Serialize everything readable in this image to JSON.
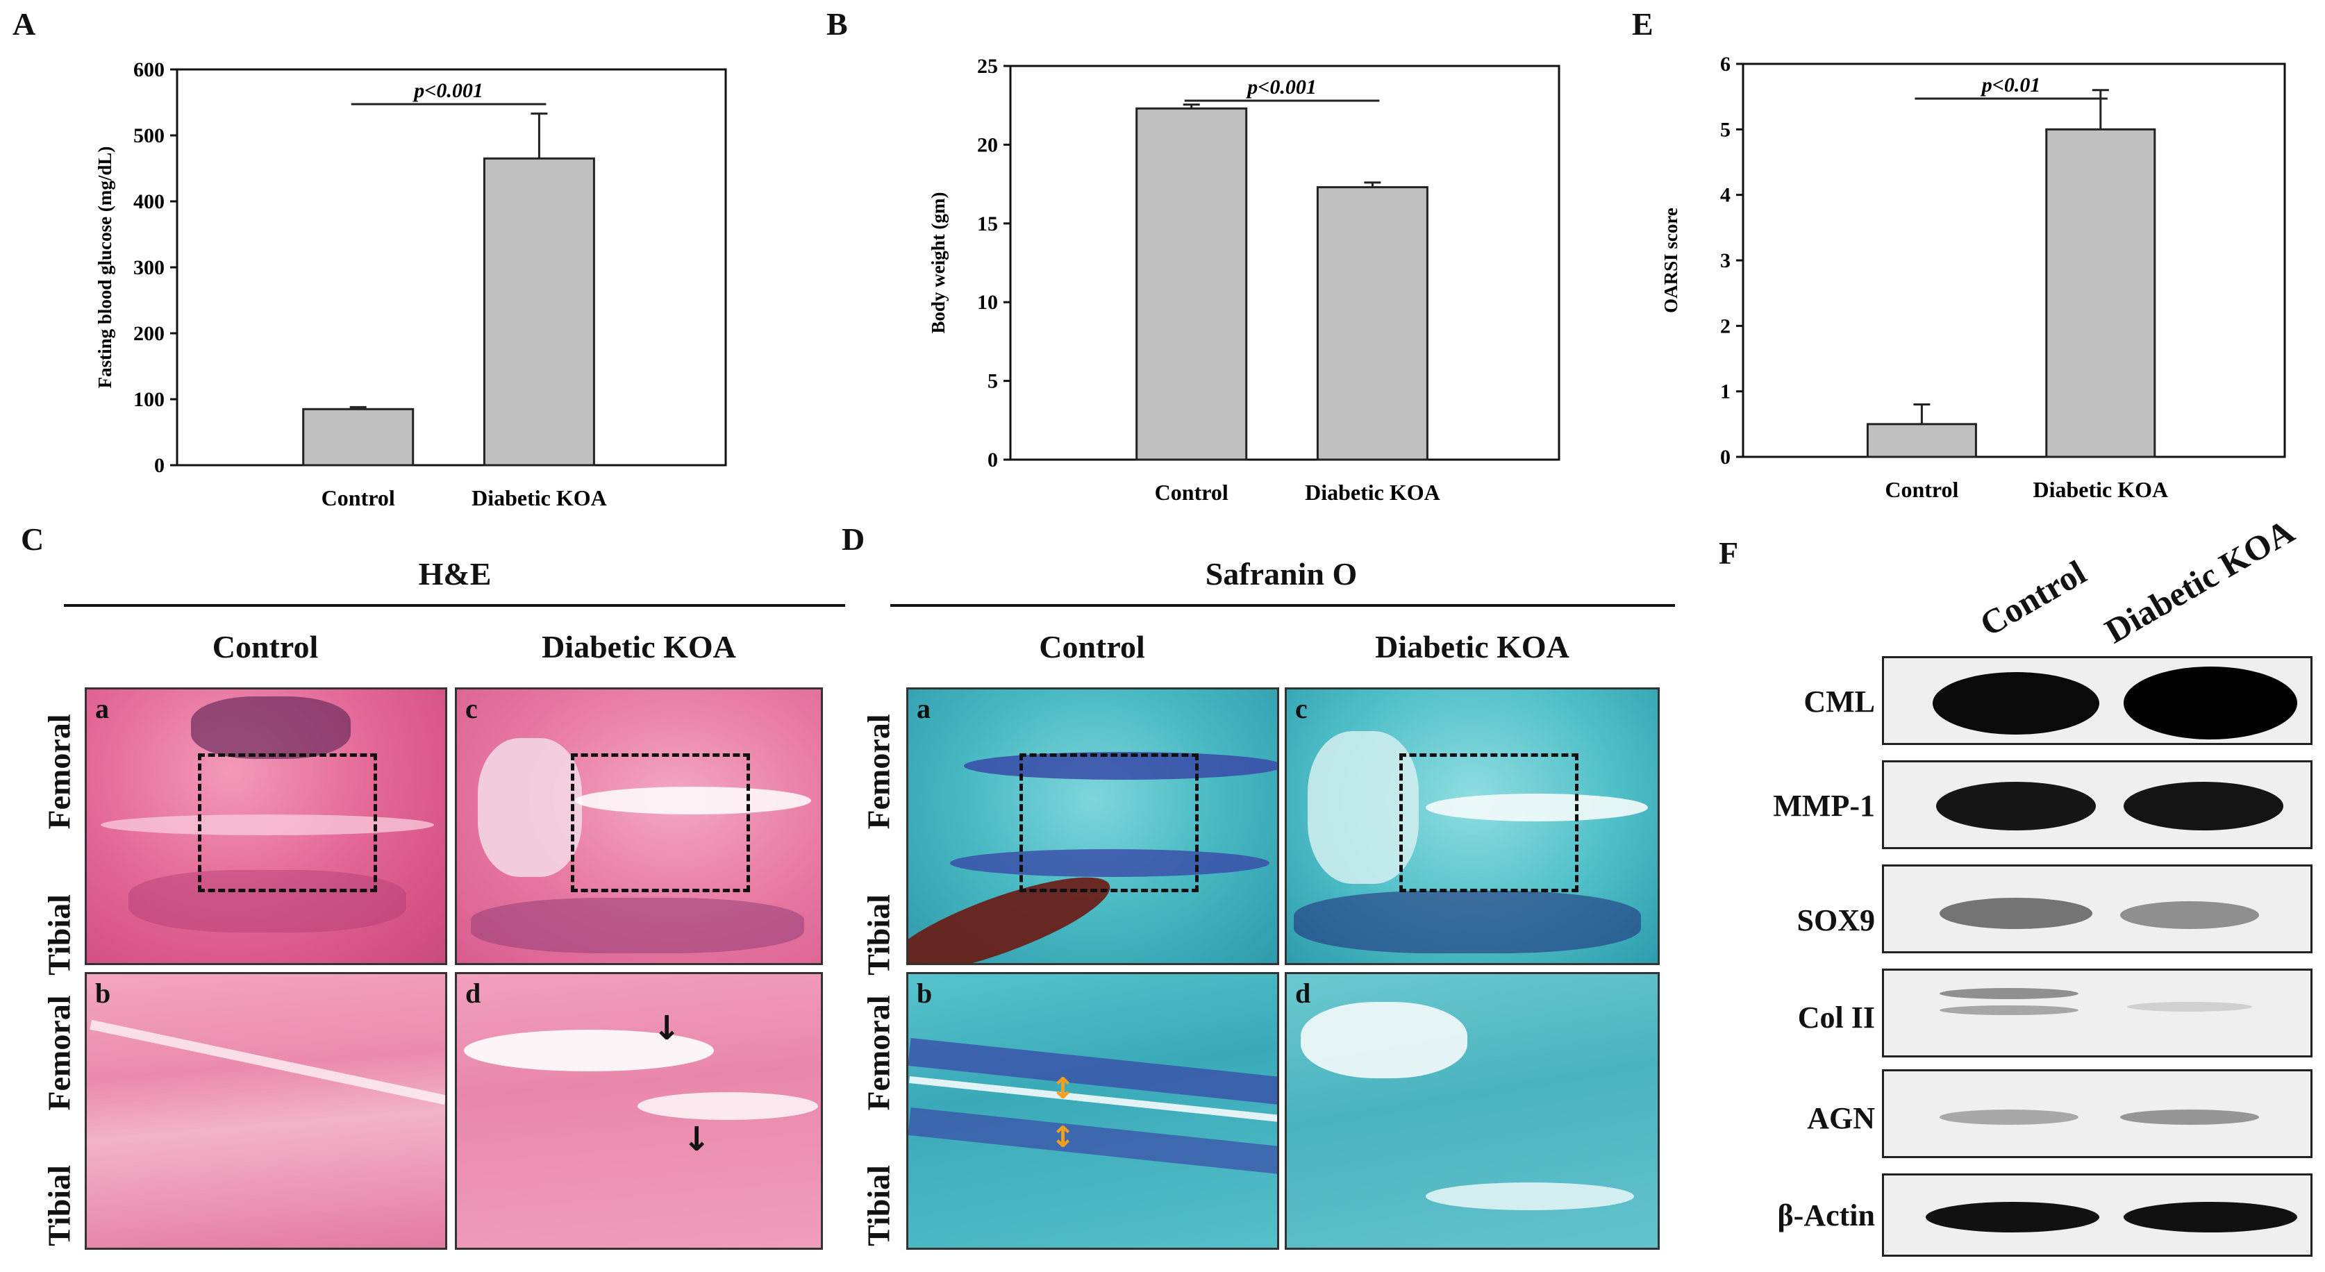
{
  "panels": {
    "A": {
      "letter": "A",
      "chart_data": {
        "type": "bar",
        "categories": [
          "Control",
          "Diabetic KOA"
        ],
        "values": [
          85,
          465
        ],
        "errors": [
          3,
          68
        ],
        "ylabel": "Fasting blood glucose (mg/dL)",
        "ylim": [
          0,
          600
        ],
        "yticks": [
          0,
          100,
          200,
          300,
          400,
          500,
          600
        ],
        "annotation": "p<0.001"
      }
    },
    "B": {
      "letter": "B",
      "chart_data": {
        "type": "bar",
        "categories": [
          "Control",
          "Diabetic KOA"
        ],
        "values": [
          22.3,
          17.3
        ],
        "errors": [
          0.25,
          0.3
        ],
        "ylabel": "Body weight (gm)",
        "ylim": [
          0,
          25
        ],
        "yticks": [
          0,
          5,
          10,
          15,
          20,
          25
        ],
        "annotation": "p<0.001"
      }
    },
    "E": {
      "letter": "E",
      "chart_data": {
        "type": "bar",
        "categories": [
          "Control",
          "Diabetic KOA"
        ],
        "values": [
          0.5,
          5.0
        ],
        "errors": [
          0.3,
          0.6
        ],
        "ylabel": "OARSI score",
        "ylim": [
          0,
          6
        ],
        "yticks": [
          0,
          1,
          2,
          3,
          4,
          5,
          6
        ],
        "annotation": "p<0.01"
      }
    },
    "C": {
      "letter": "C",
      "title": "H&E",
      "col_control": "Control",
      "col_dkoa": "Diabetic KOA",
      "row_femoral": "Femoral",
      "row_tibial": "Tibial",
      "tiles": [
        "a",
        "c",
        "b",
        "d"
      ]
    },
    "D": {
      "letter": "D",
      "title": "Safranin O",
      "col_control": "Control",
      "col_dkoa": "Diabetic KOA",
      "row_femoral": "Femoral",
      "row_tibial": "Tibial",
      "tiles": [
        "a",
        "c",
        "b",
        "d"
      ]
    },
    "F": {
      "letter": "F",
      "col_control": "Control",
      "col_dkoa": "Diabetic KOA",
      "blots": [
        "CML",
        "MMP-1",
        "SOX9",
        "Col II",
        "AGN",
        "β-Actin"
      ]
    }
  },
  "colors": {
    "bar": "#c0c0c0",
    "he_pink": "#e05a8a",
    "safranin_teal": "#3fb6c0",
    "safranin_blue": "#3a4aa8"
  }
}
